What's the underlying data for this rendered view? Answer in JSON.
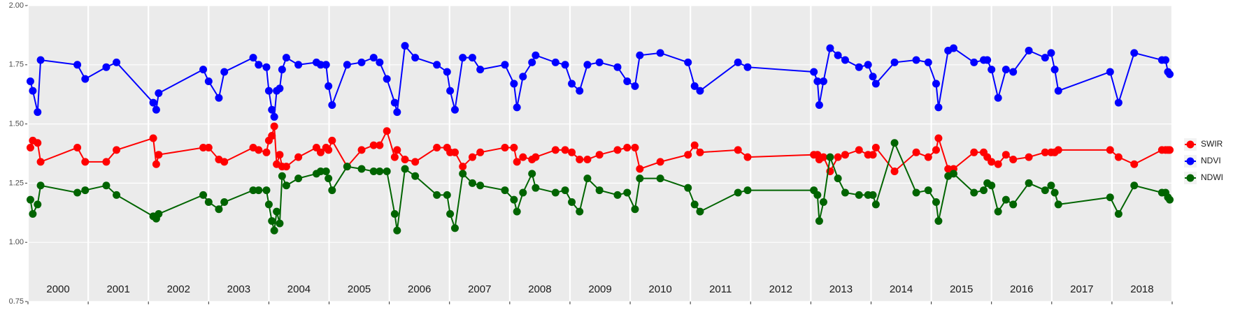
{
  "chart_data": {
    "type": "line",
    "x": [
      2000.04,
      2000.08,
      2000.16,
      2000.21,
      2000.82,
      2000.95,
      2001.3,
      2001.47,
      2002.08,
      2002.13,
      2002.17,
      2002.91,
      2003.0,
      2003.17,
      2003.26,
      2003.74,
      2003.83,
      2003.96,
      2004.0,
      2004.05,
      2004.09,
      2004.13,
      2004.18,
      2004.22,
      2004.29,
      2004.49,
      2004.79,
      2004.86,
      2004.95,
      2004.99,
      2005.05,
      2005.3,
      2005.54,
      2005.74,
      2005.84,
      2005.96,
      2006.09,
      2006.13,
      2006.26,
      2006.43,
      2006.79,
      2006.96,
      2007.01,
      2007.09,
      2007.22,
      2007.38,
      2007.51,
      2007.92,
      2008.07,
      2008.12,
      2008.22,
      2008.37,
      2008.43,
      2008.76,
      2008.92,
      2009.03,
      2009.16,
      2009.29,
      2009.49,
      2009.79,
      2009.95,
      2010.08,
      2010.16,
      2010.5,
      2010.96,
      2011.07,
      2011.16,
      2011.79,
      2011.95,
      2013.05,
      2013.11,
      2013.14,
      2013.21,
      2013.32,
      2013.45,
      2013.57,
      2013.8,
      2013.95,
      2014.03,
      2014.08,
      2014.39,
      2014.75,
      2014.95,
      2015.08,
      2015.12,
      2015.28,
      2015.37,
      2015.71,
      2015.87,
      2015.93,
      2016.0,
      2016.11,
      2016.24,
      2016.36,
      2016.62,
      2016.89,
      2016.99,
      2017.05,
      2017.11,
      2017.97,
      2018.11,
      2018.37,
      2018.83,
      2018.89,
      2018.93,
      2018.96
    ],
    "series": [
      {
        "name": "SWIR",
        "color": "#ff0000",
        "values": [
          1.4,
          1.43,
          1.42,
          1.34,
          1.4,
          1.34,
          1.34,
          1.39,
          1.44,
          1.33,
          1.37,
          1.4,
          1.4,
          1.35,
          1.34,
          1.4,
          1.39,
          1.38,
          1.43,
          1.45,
          1.49,
          1.33,
          1.37,
          1.32,
          1.32,
          1.36,
          1.4,
          1.38,
          1.4,
          1.39,
          1.43,
          1.32,
          1.39,
          1.41,
          1.41,
          1.47,
          1.36,
          1.39,
          1.35,
          1.34,
          1.4,
          1.4,
          1.38,
          1.38,
          1.32,
          1.36,
          1.38,
          1.4,
          1.4,
          1.34,
          1.36,
          1.35,
          1.36,
          1.39,
          1.39,
          1.38,
          1.35,
          1.35,
          1.37,
          1.39,
          1.4,
          1.4,
          1.31,
          1.34,
          1.37,
          1.41,
          1.38,
          1.39,
          1.36,
          1.37,
          1.37,
          1.35,
          1.36,
          1.3,
          1.36,
          1.37,
          1.39,
          1.37,
          1.37,
          1.4,
          1.3,
          1.38,
          1.36,
          1.39,
          1.44,
          1.31,
          1.31,
          1.38,
          1.38,
          1.36,
          1.34,
          1.33,
          1.37,
          1.35,
          1.36,
          1.38,
          1.38,
          1.38,
          1.39,
          1.39,
          1.36,
          1.33,
          1.39,
          1.39,
          1.39,
          1.39
        ]
      },
      {
        "name": "NDVI",
        "color": "#0000ff",
        "values": [
          1.68,
          1.64,
          1.55,
          1.77,
          1.75,
          1.69,
          1.74,
          1.76,
          1.59,
          1.56,
          1.63,
          1.73,
          1.68,
          1.61,
          1.72,
          1.78,
          1.75,
          1.74,
          1.64,
          1.56,
          1.53,
          1.64,
          1.65,
          1.73,
          1.78,
          1.75,
          1.76,
          1.75,
          1.75,
          1.66,
          1.58,
          1.75,
          1.76,
          1.78,
          1.76,
          1.69,
          1.59,
          1.55,
          1.83,
          1.78,
          1.75,
          1.72,
          1.64,
          1.56,
          1.78,
          1.78,
          1.73,
          1.75,
          1.67,
          1.57,
          1.7,
          1.76,
          1.79,
          1.76,
          1.75,
          1.67,
          1.64,
          1.75,
          1.76,
          1.74,
          1.68,
          1.66,
          1.79,
          1.8,
          1.76,
          1.66,
          1.64,
          1.76,
          1.74,
          1.72,
          1.68,
          1.58,
          1.68,
          1.82,
          1.79,
          1.77,
          1.74,
          1.75,
          1.7,
          1.67,
          1.76,
          1.77,
          1.76,
          1.67,
          1.57,
          1.81,
          1.82,
          1.76,
          1.77,
          1.77,
          1.73,
          1.61,
          1.73,
          1.72,
          1.81,
          1.78,
          1.8,
          1.73,
          1.64,
          1.72,
          1.59,
          1.8,
          1.77,
          1.77,
          1.72,
          1.71
        ]
      },
      {
        "name": "NDWI",
        "color": "#006400",
        "values": [
          1.18,
          1.12,
          1.16,
          1.24,
          1.21,
          1.22,
          1.24,
          1.2,
          1.11,
          1.1,
          1.12,
          1.2,
          1.17,
          1.14,
          1.17,
          1.22,
          1.22,
          1.22,
          1.16,
          1.09,
          1.05,
          1.13,
          1.08,
          1.28,
          1.24,
          1.27,
          1.29,
          1.3,
          1.3,
          1.27,
          1.22,
          1.32,
          1.31,
          1.3,
          1.3,
          1.3,
          1.12,
          1.05,
          1.31,
          1.28,
          1.2,
          1.2,
          1.12,
          1.06,
          1.29,
          1.25,
          1.24,
          1.22,
          1.18,
          1.13,
          1.21,
          1.29,
          1.23,
          1.21,
          1.22,
          1.17,
          1.13,
          1.27,
          1.22,
          1.2,
          1.21,
          1.14,
          1.27,
          1.27,
          1.23,
          1.16,
          1.13,
          1.21,
          1.22,
          1.22,
          1.2,
          1.09,
          1.17,
          1.36,
          1.27,
          1.21,
          1.2,
          1.2,
          1.2,
          1.16,
          1.42,
          1.21,
          1.22,
          1.17,
          1.09,
          1.28,
          1.29,
          1.21,
          1.22,
          1.25,
          1.24,
          1.13,
          1.18,
          1.16,
          1.25,
          1.22,
          1.24,
          1.21,
          1.16,
          1.19,
          1.12,
          1.24,
          1.21,
          1.21,
          1.19,
          1.18
        ]
      }
    ],
    "xlim": [
      2000,
      2019
    ],
    "xticks": [
      2000,
      2001,
      2002,
      2003,
      2004,
      2005,
      2006,
      2007,
      2008,
      2009,
      2010,
      2011,
      2012,
      2013,
      2014,
      2015,
      2016,
      2017,
      2018,
      2019
    ],
    "year_labels": [
      "2000",
      "2001",
      "2002",
      "2003",
      "2004",
      "2005",
      "2006",
      "2007",
      "2008",
      "2009",
      "2010",
      "2011",
      "2012",
      "2013",
      "2014",
      "2015",
      "2016",
      "2017",
      "2018"
    ],
    "ylim": [
      0.75,
      2.0
    ],
    "yticks": [
      0.75,
      {
        "value": 1.0,
        "label": "1.00"
      },
      1.25,
      {
        "value": 1.5,
        "label": "1.50"
      },
      1.75,
      {
        "value": 2.0,
        "label": "2.00"
      }
    ],
    "grid": true,
    "legend": "right"
  }
}
